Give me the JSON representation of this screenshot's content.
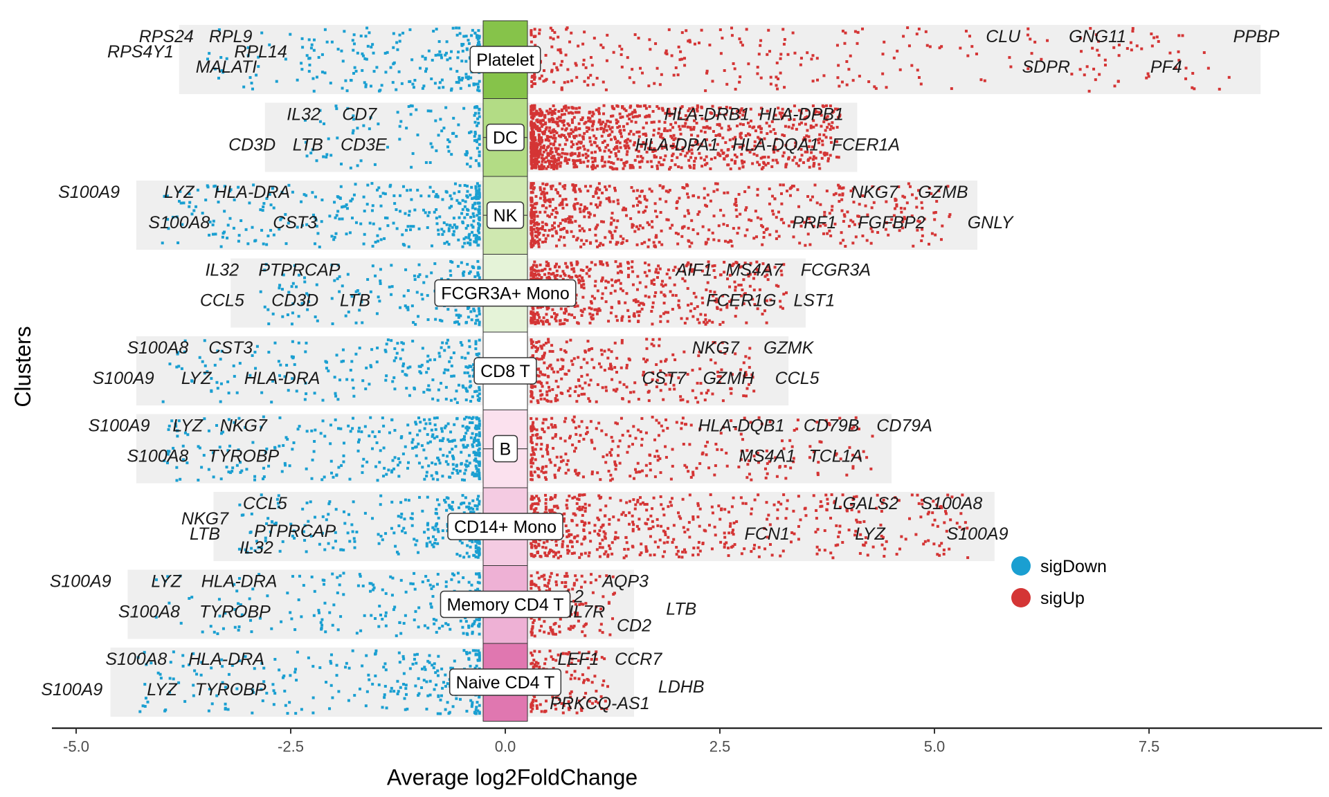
{
  "chart_data": {
    "type": "scatter",
    "xlabel": "Average log2FoldChange",
    "ylabel": "Clusters",
    "xlim": [
      -5.2,
      9.4
    ],
    "xticks": [
      -5.0,
      -2.5,
      0.0,
      2.5,
      5.0,
      7.5
    ],
    "xtick_labels": [
      "-5.0",
      "-2.5",
      "0.0",
      "2.5",
      "5.0",
      "7.5"
    ],
    "legend": {
      "position": "right",
      "entries": [
        {
          "name": "sigDown",
          "color": "#1a9fd1"
        },
        {
          "name": "sigUp",
          "color": "#d43535"
        }
      ]
    },
    "colors": {
      "sigDown": "#1a9fd1",
      "sigUp": "#d43535",
      "band": "#efefef"
    },
    "clusters": [
      {
        "name": "Platelet",
        "color": "#86c34a",
        "range": [
          -3.8,
          8.8
        ],
        "n_down": 220,
        "n_up": 320,
        "up_max": 8.6,
        "genes_down": [
          {
            "label": "RPL9",
            "x": -3.2,
            "row": "t"
          },
          {
            "label": "RPS24",
            "x": -3.95,
            "row": "t"
          },
          {
            "label": "RPL14",
            "x": -2.85,
            "row": "m"
          },
          {
            "label": "RPS4Y1",
            "x": -4.25,
            "row": "m"
          },
          {
            "label": "MALATI",
            "x": -3.25,
            "row": "b"
          }
        ],
        "genes_up": [
          {
            "label": "CLU",
            "x": 5.8,
            "row": "t"
          },
          {
            "label": "GNG11",
            "x": 6.9,
            "row": "t"
          },
          {
            "label": "PPBP",
            "x": 8.75,
            "row": "t"
          },
          {
            "label": "SDPR",
            "x": 6.3,
            "row": "b"
          },
          {
            "label": "PF4",
            "x": 7.7,
            "row": "b"
          }
        ]
      },
      {
        "name": "DC",
        "color": "#b3dc85",
        "range": [
          -2.8,
          4.1
        ],
        "n_down": 110,
        "n_up": 1100,
        "up_max": 4.0,
        "genes_down": [
          {
            "label": "IL32",
            "x": -2.35,
            "row": "t"
          },
          {
            "label": "CD7",
            "x": -1.7,
            "row": "t"
          },
          {
            "label": "CD3D",
            "x": -2.95,
            "row": "b"
          },
          {
            "label": "LTB",
            "x": -2.3,
            "row": "b"
          },
          {
            "label": "CD3E",
            "x": -1.65,
            "row": "b"
          }
        ],
        "genes_up": [
          {
            "label": "HLA-DRB1",
            "x": 2.35,
            "row": "t"
          },
          {
            "label": "HLA-DPB1",
            "x": 3.45,
            "row": "t"
          },
          {
            "label": "HLA-DPA1",
            "x": 2.0,
            "row": "b"
          },
          {
            "label": "HLA-DQA1",
            "x": 3.15,
            "row": "b"
          },
          {
            "label": "FCER1A",
            "x": 4.2,
            "row": "b"
          }
        ]
      },
      {
        "name": "NK",
        "color": "#cfe8b0",
        "range": [
          -4.3,
          5.5
        ],
        "n_down": 350,
        "n_up": 640,
        "up_max": 5.3,
        "genes_down": [
          {
            "label": "S100A9",
            "x": -4.85,
            "row": "t"
          },
          {
            "label": "LYZ",
            "x": -3.8,
            "row": "t"
          },
          {
            "label": "HLA-DRA",
            "x": -2.95,
            "row": "t"
          },
          {
            "label": "S100A8",
            "x": -3.8,
            "row": "b"
          },
          {
            "label": "CST3",
            "x": -2.45,
            "row": "b"
          }
        ],
        "genes_up": [
          {
            "label": "NKG7",
            "x": 4.3,
            "row": "t"
          },
          {
            "label": "GZMB",
            "x": 5.1,
            "row": "t"
          },
          {
            "label": "PRF1",
            "x": 3.6,
            "row": "b"
          },
          {
            "label": "FGFBP2",
            "x": 4.5,
            "row": "b"
          },
          {
            "label": "GNLY",
            "x": 5.65,
            "row": "b"
          }
        ]
      },
      {
        "name": "FCGR3A+ Mono",
        "color": "#e5f3d8",
        "range": [
          -3.2,
          3.5
        ],
        "n_down": 200,
        "n_up": 560,
        "up_max": 3.4,
        "genes_down": [
          {
            "label": "IL32",
            "x": -3.3,
            "row": "t"
          },
          {
            "label": "PTPRCAP",
            "x": -2.4,
            "row": "t"
          },
          {
            "label": "CCL5",
            "x": -3.3,
            "row": "b"
          },
          {
            "label": "CD3D",
            "x": -2.45,
            "row": "b"
          },
          {
            "label": "LTB",
            "x": -1.75,
            "row": "b"
          }
        ],
        "genes_up": [
          {
            "label": "AIF1",
            "x": 2.2,
            "row": "t"
          },
          {
            "label": "MS4A7",
            "x": 2.9,
            "row": "t"
          },
          {
            "label": "FCGR3A",
            "x": 3.85,
            "row": "t"
          },
          {
            "label": "FCER1G",
            "x": 2.75,
            "row": "b"
          },
          {
            "label": "LST1",
            "x": 3.6,
            "row": "b"
          }
        ]
      },
      {
        "name": "CD8 T",
        "color": "#ffffff",
        "range": [
          -4.3,
          3.3
        ],
        "n_down": 230,
        "n_up": 300,
        "up_max": 3.0,
        "genes_down": [
          {
            "label": "S100A8",
            "x": -4.05,
            "row": "t"
          },
          {
            "label": "CST3",
            "x": -3.2,
            "row": "t"
          },
          {
            "label": "S100A9",
            "x": -4.45,
            "row": "b"
          },
          {
            "label": "LYZ",
            "x": -3.6,
            "row": "b"
          },
          {
            "label": "HLA-DRA",
            "x": -2.6,
            "row": "b"
          }
        ],
        "genes_up": [
          {
            "label": "NKG7",
            "x": 2.45,
            "row": "t"
          },
          {
            "label": "GZMK",
            "x": 3.3,
            "row": "t"
          },
          {
            "label": "CST7",
            "x": 1.85,
            "row": "b"
          },
          {
            "label": "GZMH",
            "x": 2.6,
            "row": "b"
          },
          {
            "label": "CCL5",
            "x": 3.4,
            "row": "b"
          }
        ]
      },
      {
        "name": "B",
        "color": "#fbe1ee",
        "range": [
          -4.3,
          4.5
        ],
        "n_down": 360,
        "n_up": 320,
        "up_max": 4.4,
        "genes_down": [
          {
            "label": "S100A9",
            "x": -4.5,
            "row": "t"
          },
          {
            "label": "LYZ",
            "x": -3.7,
            "row": "t"
          },
          {
            "label": "NKG7",
            "x": -3.05,
            "row": "t"
          },
          {
            "label": "S100A8",
            "x": -4.05,
            "row": "b"
          },
          {
            "label": "TYROBP",
            "x": -3.05,
            "row": "b"
          }
        ],
        "genes_up": [
          {
            "label": "HLA-DQB1",
            "x": 2.75,
            "row": "t"
          },
          {
            "label": "CD79B",
            "x": 3.8,
            "row": "t"
          },
          {
            "label": "CD79A",
            "x": 4.65,
            "row": "t"
          },
          {
            "label": "MS4A1",
            "x": 3.05,
            "row": "b"
          },
          {
            "label": "TCL1A",
            "x": 3.85,
            "row": "b"
          }
        ]
      },
      {
        "name": "CD14+ Mono",
        "color": "#f4cbe2",
        "range": [
          -3.4,
          5.7
        ],
        "n_down": 260,
        "n_up": 600,
        "up_max": 5.5,
        "genes_down": [
          {
            "label": "CCL5",
            "x": -2.8,
            "row": "t"
          },
          {
            "label": "NKG7",
            "x": -3.5,
            "row": "m"
          },
          {
            "label": "PTPRCAP",
            "x": -2.45,
            "row": "m2"
          },
          {
            "label": "LTB",
            "x": -3.5,
            "row": "b"
          },
          {
            "label": "IL32",
            "x": -2.9,
            "row": "bb"
          }
        ],
        "genes_up": [
          {
            "label": "LGALS2",
            "x": 4.2,
            "row": "t"
          },
          {
            "label": "S100A8",
            "x": 5.2,
            "row": "t"
          },
          {
            "label": "FCN1",
            "x": 3.05,
            "row": "b"
          },
          {
            "label": "LYZ",
            "x": 4.25,
            "row": "b"
          },
          {
            "label": "S100A9",
            "x": 5.5,
            "row": "b"
          }
        ]
      },
      {
        "name": "Memory CD4 T",
        "color": "#eeb1d5",
        "range": [
          -4.4,
          1.5
        ],
        "n_down": 230,
        "n_up": 160,
        "up_max": 1.4,
        "genes_down": [
          {
            "label": "S100A9",
            "x": -4.95,
            "row": "t"
          },
          {
            "label": "LYZ",
            "x": -3.95,
            "row": "t"
          },
          {
            "label": "HLA-DRA",
            "x": -3.1,
            "row": "t"
          },
          {
            "label": "S100A8",
            "x": -4.15,
            "row": "b"
          },
          {
            "label": "TYROBP",
            "x": -3.15,
            "row": "b"
          }
        ],
        "genes_up": [
          {
            "label": "AQP3",
            "x": 1.4,
            "row": "t"
          },
          {
            "label": "L2",
            "x": 0.8,
            "row": "m"
          },
          {
            "label": "LTB",
            "x": 2.05,
            "row": "m2"
          },
          {
            "label": "IL7R",
            "x": 0.95,
            "row": "b"
          },
          {
            "label": "CD2",
            "x": 1.5,
            "row": "bb"
          }
        ]
      },
      {
        "name": "Naive CD4 T",
        "color": "#e077b0",
        "range": [
          -4.6,
          1.5
        ],
        "n_down": 280,
        "n_up": 140,
        "up_max": 1.3,
        "genes_down": [
          {
            "label": "S100A8",
            "x": -4.3,
            "row": "t"
          },
          {
            "label": "HLA-DRA",
            "x": -3.25,
            "row": "t"
          },
          {
            "label": "S100A9",
            "x": -5.05,
            "row": "b"
          },
          {
            "label": "LYZ",
            "x": -4.0,
            "row": "b"
          },
          {
            "label": "TYROBP",
            "x": -3.2,
            "row": "b"
          }
        ],
        "genes_up": [
          {
            "label": "LEF1",
            "x": 0.85,
            "row": "t"
          },
          {
            "label": "CCR7",
            "x": 1.55,
            "row": "t"
          },
          {
            "label": "LDHB",
            "x": 2.05,
            "row": "m2"
          },
          {
            "label": "PRKCQ-AS1",
            "x": 1.1,
            "row": "bb"
          }
        ]
      }
    ]
  }
}
